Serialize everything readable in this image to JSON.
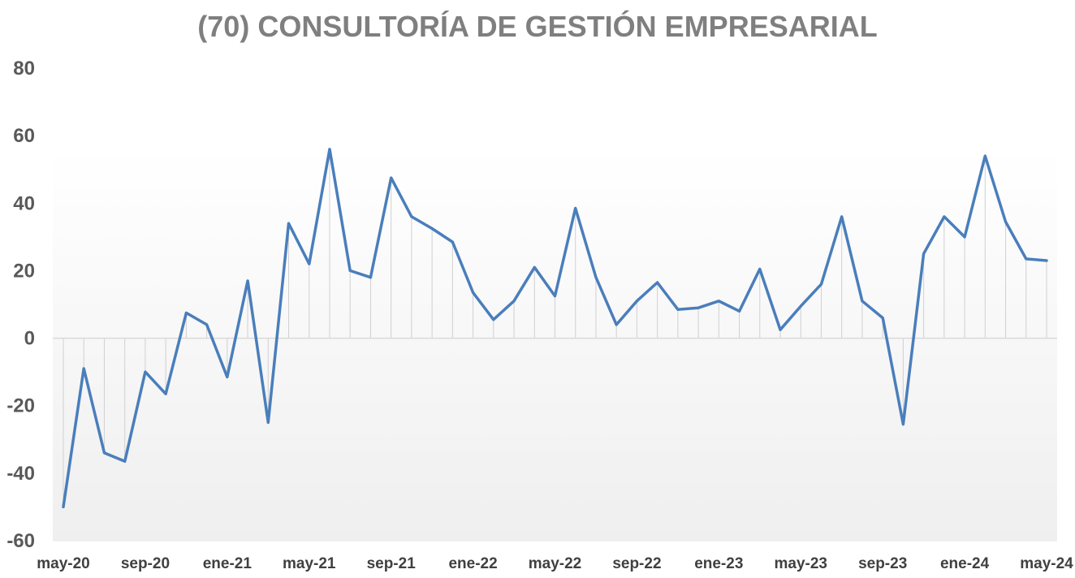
{
  "chart_data": {
    "type": "line",
    "title": "(70) CONSULTORÍA DE GESTIÓN EMPRESARIAL",
    "xlabel": "",
    "ylabel": "",
    "ylim": [
      -60,
      80
    ],
    "yticks": [
      80,
      60,
      40,
      20,
      0,
      -20,
      -40,
      -60
    ],
    "grid": false,
    "drop_lines": true,
    "legend": "none",
    "x_tick_labels": [
      "may-20",
      "sep-20",
      "ene-21",
      "may-21",
      "sep-21",
      "ene-22",
      "may-22",
      "sep-22",
      "ene-23",
      "may-23",
      "sep-23",
      "ene-24",
      "may-24"
    ],
    "x": [
      "may-20",
      "jun-20",
      "jul-20",
      "ago-20",
      "sep-20",
      "oct-20",
      "nov-20",
      "dic-20",
      "ene-21",
      "feb-21",
      "mar-21",
      "abr-21",
      "may-21",
      "jun-21",
      "jul-21",
      "ago-21",
      "sep-21",
      "oct-21",
      "nov-21",
      "dic-21",
      "ene-22",
      "feb-22",
      "mar-22",
      "abr-22",
      "may-22",
      "jun-22",
      "jul-22",
      "ago-22",
      "sep-22",
      "oct-22",
      "nov-22",
      "dic-22",
      "ene-23",
      "feb-23",
      "mar-23",
      "abr-23",
      "may-23",
      "jun-23",
      "jul-23",
      "ago-23",
      "sep-23",
      "oct-23",
      "nov-23",
      "dic-23",
      "ene-24",
      "feb-24",
      "mar-24",
      "abr-24",
      "may-24"
    ],
    "series": [
      {
        "color": "#4a7ebb",
        "values": [
          -50,
          -9,
          -34,
          -36.5,
          -10,
          -16.5,
          7.5,
          4,
          -11.5,
          17,
          -25,
          34,
          22,
          56,
          20,
          18,
          47.5,
          36,
          32.5,
          28.5,
          13.5,
          5.5,
          11,
          21,
          12.5,
          38.5,
          18,
          4,
          11,
          16.5,
          8.5,
          9,
          11,
          8,
          20.5,
          2.5,
          9.5,
          16,
          36,
          11,
          6,
          -25.5,
          25,
          36,
          30,
          54,
          34.5,
          23.5,
          23
        ]
      }
    ]
  }
}
